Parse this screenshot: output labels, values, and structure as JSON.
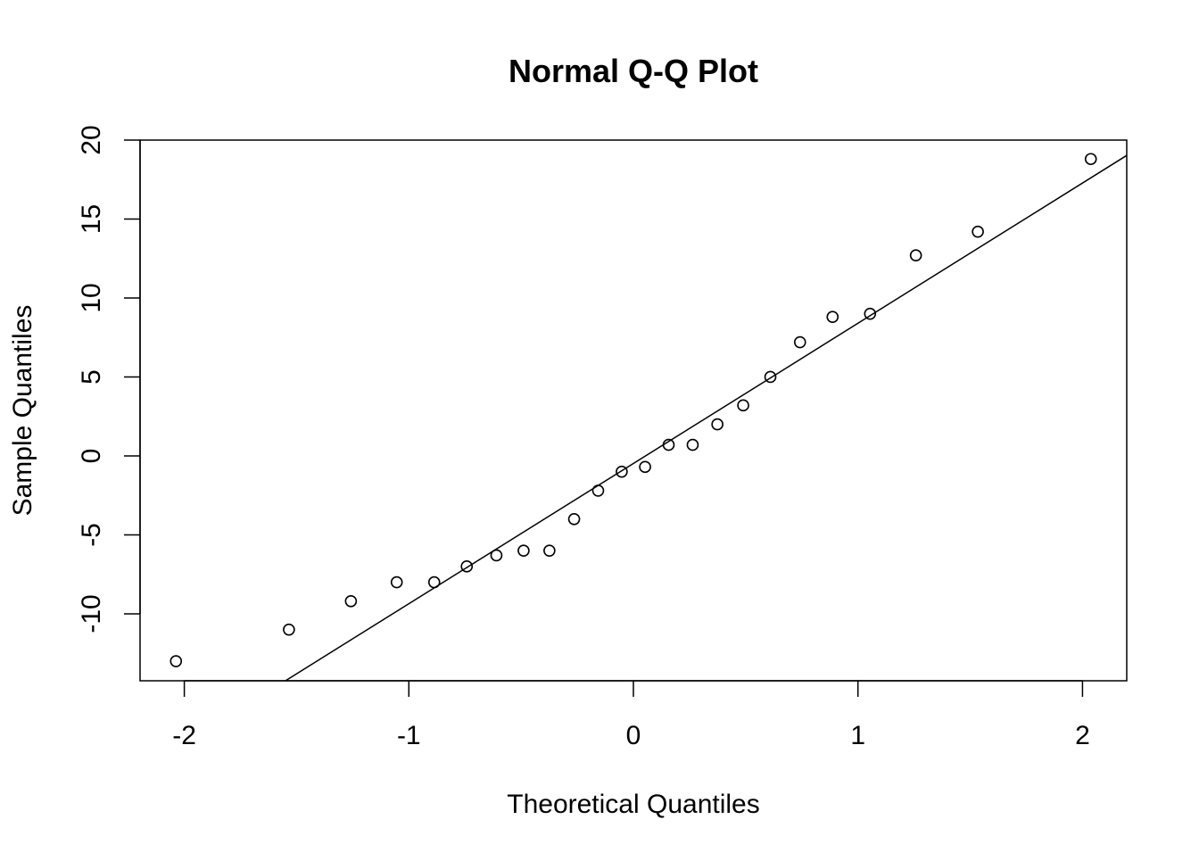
{
  "chart_data": {
    "type": "scatter",
    "title": "Normal Q-Q Plot",
    "xlabel": "Theoretical Quantiles",
    "ylabel": "Sample Quantiles",
    "xlim": [
      -2.197,
      2.197
    ],
    "ylim": [
      -14.24,
      20.0
    ],
    "xticks": [
      -2,
      -1,
      0,
      1,
      2
    ],
    "xtick_labels": [
      "-2",
      "-1",
      "0",
      "1",
      "2"
    ],
    "yticks": [
      -10,
      -5,
      0,
      5,
      10,
      15,
      20
    ],
    "ytick_labels": [
      "-10",
      "-5",
      "0",
      "5",
      "10",
      "15",
      "20"
    ],
    "grid": false,
    "legend": "none",
    "points": {
      "x": [
        -2.037,
        -1.534,
        -1.258,
        -1.054,
        -0.887,
        -0.742,
        -0.61,
        -0.489,
        -0.374,
        -0.264,
        -0.157,
        -0.052,
        0.052,
        0.157,
        0.264,
        0.374,
        0.489,
        0.61,
        0.742,
        0.887,
        1.054,
        1.258,
        1.534,
        2.037
      ],
      "y": [
        -13.0,
        -11.0,
        -9.2,
        -8.0,
        -8.0,
        -7.0,
        -6.3,
        -6.0,
        -6.0,
        -4.0,
        -2.2,
        -1.0,
        -0.7,
        0.7,
        0.7,
        2.0,
        3.2,
        5.0,
        7.2,
        8.8,
        9.0,
        12.7,
        14.2,
        18.8
      ]
    },
    "reference_line": {
      "intercept": -0.48,
      "slope": 8.88
    },
    "colors": {
      "points": "#000000",
      "line": "#000000"
    }
  }
}
